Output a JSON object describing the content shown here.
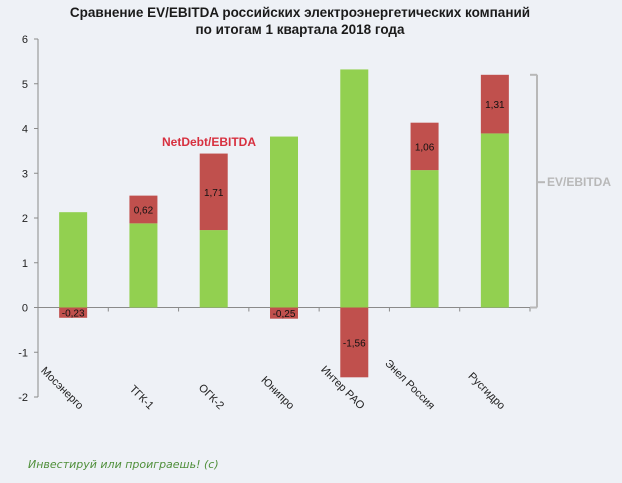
{
  "chart_data": {
    "type": "bar",
    "stacked": true,
    "title": "Сравнение EV/EBITDA российских электроэнергетических компаний",
    "subtitle": "по итогам 1 квартала 2018 года",
    "categories": [
      "Мосэнерго",
      "ТГК-1",
      "ОГК-2",
      "Юнипро",
      "Интер РАО",
      "Энел Россия",
      "Русгидро"
    ],
    "series": [
      {
        "name": "EV/EBITDA (base)",
        "color": "#92d050",
        "values": [
          2.13,
          1.88,
          1.73,
          3.82,
          5.32,
          3.07,
          3.89
        ]
      },
      {
        "name": "NetDebt/EBITDA",
        "color": "#c0504d",
        "values": [
          -0.23,
          0.62,
          1.71,
          -0.25,
          -1.56,
          1.06,
          1.31
        ]
      }
    ],
    "data_labels": [
      "-0,23",
      "0,62",
      "1,71",
      "-0,25",
      "-1,56",
      "1,06",
      "1,31"
    ],
    "ylim": [
      -2,
      6
    ],
    "yticks": [
      6,
      5,
      4,
      3,
      2,
      1,
      0,
      -1,
      -2
    ],
    "grid": false,
    "annotations": {
      "netdebt": "NetDebt/EBITDA",
      "ev": "EV/EBITDA"
    },
    "annotation_colors": {
      "netdebt": "#d7303f",
      "ev": "#b8b8b8"
    }
  },
  "footer": {
    "watermark": "Инвестируй или проиграешь! (с)"
  }
}
